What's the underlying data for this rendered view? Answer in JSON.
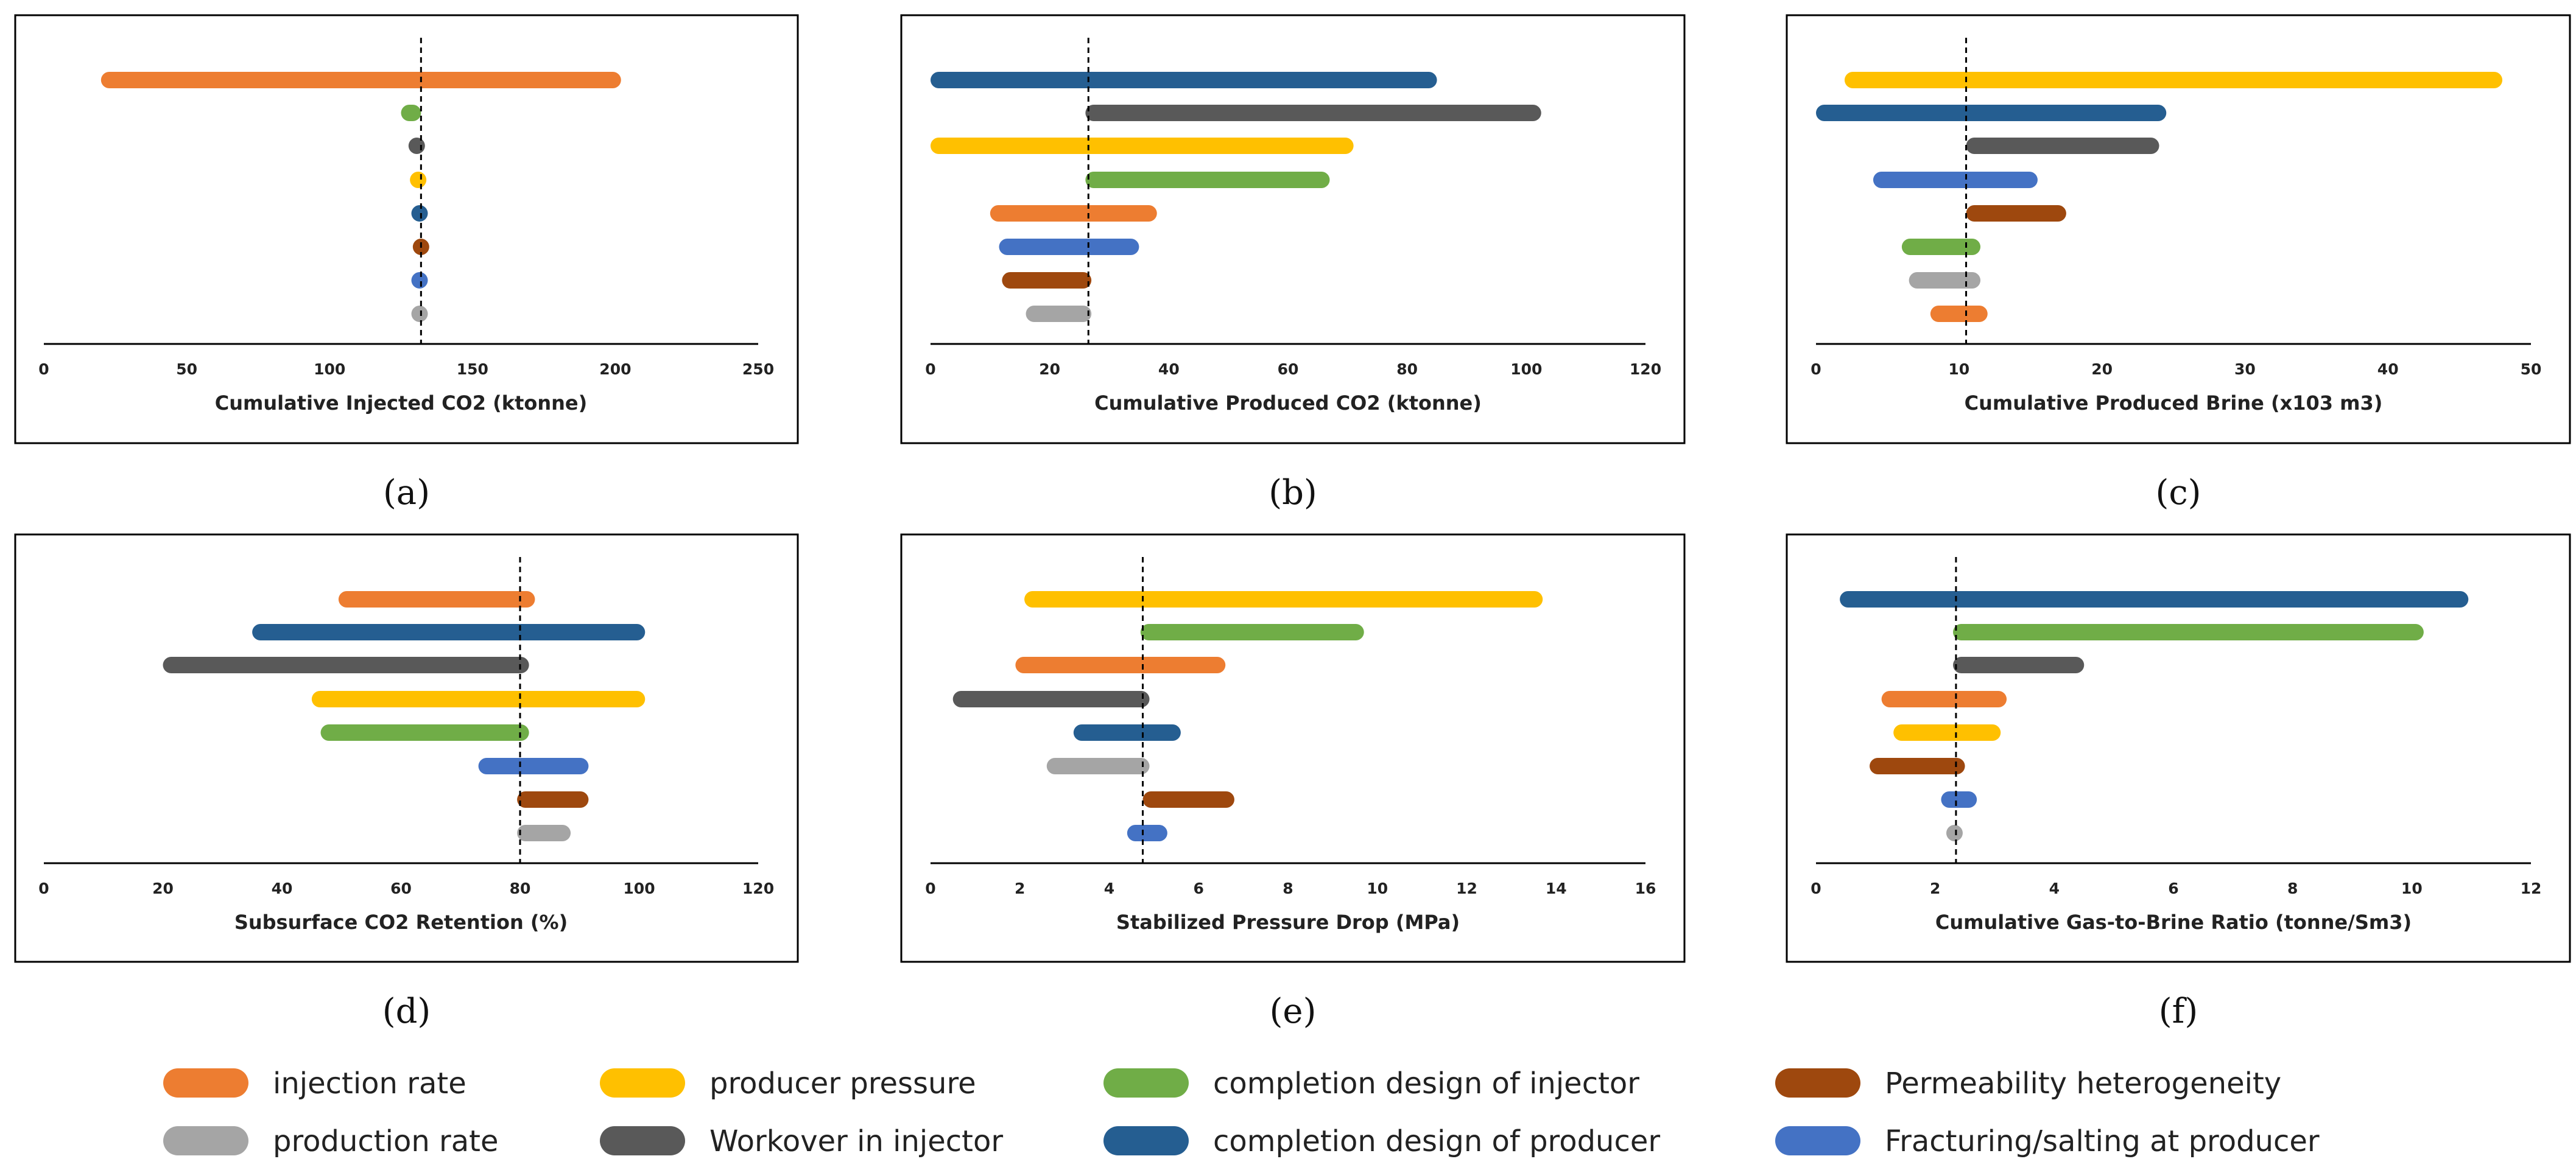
{
  "colors": {
    "injection_rate": "#ED7D31",
    "production_rate": "#A5A5A5",
    "producer_pressure": "#FFC000",
    "workover_injector": "#595959",
    "completion_injector": "#70AD47",
    "completion_producer": "#255E91",
    "permeability": "#9E480E",
    "fracturing": "#4472C4"
  },
  "legend": [
    {
      "key": "injection_rate",
      "label": "injection rate"
    },
    {
      "key": "producer_pressure",
      "label": "producer pressure"
    },
    {
      "key": "completion_injector",
      "label": "completion design of injector"
    },
    {
      "key": "permeability",
      "label": "Permeability heterogeneity"
    },
    {
      "key": "production_rate",
      "label": "production rate"
    },
    {
      "key": "workover_injector",
      "label": "Workover in injector"
    },
    {
      "key": "completion_producer",
      "label": "completion design of producer"
    },
    {
      "key": "fracturing",
      "label": "Fracturing/salting at producer"
    }
  ],
  "chart_data": [
    {
      "type": "bar",
      "panel": "(a)",
      "xlabel": "Cumulative Injected CO2 (ktonne)",
      "xlim": [
        0,
        250
      ],
      "ticks": [
        0,
        50,
        100,
        150,
        200,
        250
      ],
      "base": 132,
      "bars": [
        {
          "key": "injection_rate",
          "low": 20,
          "high": 202
        },
        {
          "key": "completion_injector",
          "low": 125,
          "high": 132
        },
        {
          "key": "workover_injector",
          "low": 128,
          "high": 133
        },
        {
          "key": "producer_pressure",
          "low": 129,
          "high": 133
        },
        {
          "key": "completion_producer",
          "low": 130,
          "high": 133
        },
        {
          "key": "permeability",
          "low": 131,
          "high": 133
        },
        {
          "key": "fracturing",
          "low": 131,
          "high": 132
        },
        {
          "key": "production_rate",
          "low": 131,
          "high": 132
        }
      ]
    },
    {
      "type": "bar",
      "panel": "(b)",
      "xlabel": "Cumulative Produced CO2 (ktonne)",
      "xlim": [
        0,
        120
      ],
      "ticks": [
        0,
        20,
        40,
        60,
        80,
        100,
        120
      ],
      "base": 26.5,
      "bars": [
        {
          "key": "completion_producer",
          "low": 0,
          "high": 85
        },
        {
          "key": "workover_injector",
          "low": 26,
          "high": 102.5
        },
        {
          "key": "producer_pressure",
          "low": 0,
          "high": 71
        },
        {
          "key": "completion_injector",
          "low": 26,
          "high": 67
        },
        {
          "key": "injection_rate",
          "low": 10,
          "high": 38
        },
        {
          "key": "fracturing",
          "low": 11.5,
          "high": 35
        },
        {
          "key": "permeability",
          "low": 12,
          "high": 27
        },
        {
          "key": "production_rate",
          "low": 16,
          "high": 27
        }
      ]
    },
    {
      "type": "bar",
      "panel": "(c)",
      "xlabel": "Cumulative Produced Brine (x103 m3)",
      "xlim": [
        0,
        50
      ],
      "ticks": [
        0,
        10,
        20,
        30,
        40,
        50
      ],
      "base": 10.5,
      "bars": [
        {
          "key": "producer_pressure",
          "low": 2,
          "high": 48
        },
        {
          "key": "completion_producer",
          "low": 0,
          "high": 24.5
        },
        {
          "key": "workover_injector",
          "low": 10.5,
          "high": 24
        },
        {
          "key": "fracturing",
          "low": 4,
          "high": 15.5
        },
        {
          "key": "permeability",
          "low": 10.5,
          "high": 17.5
        },
        {
          "key": "completion_injector",
          "low": 6,
          "high": 11.5
        },
        {
          "key": "production_rate",
          "low": 6.5,
          "high": 11.5
        },
        {
          "key": "injection_rate",
          "low": 8,
          "high": 12
        }
      ]
    },
    {
      "type": "bar",
      "panel": "(d)",
      "xlabel": "Subsurface CO2 Retention (%)",
      "xlim": [
        0,
        120
      ],
      "ticks": [
        0,
        20,
        40,
        60,
        80,
        100,
        120
      ],
      "base": 80,
      "bars": [
        {
          "key": "injection_rate",
          "low": 49.5,
          "high": 82.5
        },
        {
          "key": "completion_producer",
          "low": 35,
          "high": 101
        },
        {
          "key": "workover_injector",
          "low": 20,
          "high": 81.5
        },
        {
          "key": "producer_pressure",
          "low": 45,
          "high": 101
        },
        {
          "key": "completion_injector",
          "low": 46.5,
          "high": 81.5
        },
        {
          "key": "fracturing",
          "low": 73,
          "high": 91.5
        },
        {
          "key": "permeability",
          "low": 79.5,
          "high": 91.5
        },
        {
          "key": "production_rate",
          "low": 79.5,
          "high": 88.5
        }
      ]
    },
    {
      "type": "bar",
      "panel": "(e)",
      "xlabel": "Stabilized Pressure Drop (MPa)",
      "xlim": [
        0,
        16
      ],
      "ticks": [
        0,
        2,
        4,
        6,
        8,
        10,
        12,
        14,
        16
      ],
      "base": 4.75,
      "bars": [
        {
          "key": "producer_pressure",
          "low": 2.1,
          "high": 13.7
        },
        {
          "key": "completion_injector",
          "low": 4.7,
          "high": 9.7
        },
        {
          "key": "injection_rate",
          "low": 1.9,
          "high": 6.6
        },
        {
          "key": "workover_injector",
          "low": 0.5,
          "high": 4.9
        },
        {
          "key": "completion_producer",
          "low": 3.2,
          "high": 5.6
        },
        {
          "key": "production_rate",
          "low": 2.6,
          "high": 4.9
        },
        {
          "key": "permeability",
          "low": 4.75,
          "high": 6.8
        },
        {
          "key": "fracturing",
          "low": 4.4,
          "high": 5.3
        }
      ]
    },
    {
      "type": "bar",
      "panel": "(f)",
      "xlabel": "Cumulative Gas-to-Brine Ratio (tonne/Sm3)",
      "xlim": [
        0,
        12
      ],
      "ticks": [
        0,
        2,
        4,
        6,
        8,
        10,
        12
      ],
      "base": 2.35,
      "bars": [
        {
          "key": "completion_producer",
          "low": 0.4,
          "high": 10.95
        },
        {
          "key": "completion_injector",
          "low": 2.3,
          "high": 10.2
        },
        {
          "key": "workover_injector",
          "low": 2.3,
          "high": 4.5
        },
        {
          "key": "injection_rate",
          "low": 1.1,
          "high": 3.2
        },
        {
          "key": "producer_pressure",
          "low": 1.3,
          "high": 3.1
        },
        {
          "key": "permeability",
          "low": 0.9,
          "high": 2.5
        },
        {
          "key": "fracturing",
          "low": 2.1,
          "high": 2.7
        },
        {
          "key": "production_rate",
          "low": 2.2,
          "high": 2.45
        }
      ]
    }
  ]
}
